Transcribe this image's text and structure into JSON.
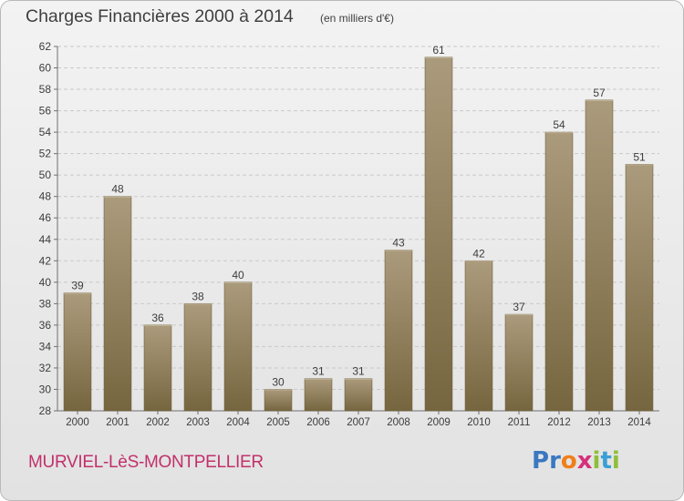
{
  "header": {
    "title": "Charges Financières 2000 à 2014",
    "subtitle": "(en milliers d'€)"
  },
  "footer": {
    "place": "MURVIEL-LèS-MONTPELLIER",
    "logo_letters": [
      {
        "ch": "P",
        "color": "#3a78c2"
      },
      {
        "ch": "r",
        "color": "#3a78c2"
      },
      {
        "ch": "o",
        "color": "#f07f1a"
      },
      {
        "ch": "x",
        "color": "#d6307c"
      },
      {
        "ch": "i",
        "color": "#8fbf3a"
      },
      {
        "ch": "t",
        "color": "#3a9fd6"
      },
      {
        "ch": "i",
        "color": "#8fbf3a"
      }
    ]
  },
  "chart_data": {
    "type": "bar",
    "title": "Charges Financières 2000 à 2014",
    "subtitle": "(en milliers d'€)",
    "categories": [
      "2000",
      "2001",
      "2002",
      "2003",
      "2004",
      "2005",
      "2006",
      "2007",
      "2008",
      "2009",
      "2010",
      "2011",
      "2012",
      "2013",
      "2014"
    ],
    "values": [
      39,
      48,
      36,
      38,
      40,
      30,
      31,
      31,
      43,
      61,
      42,
      37,
      54,
      57,
      51
    ],
    "ylim": [
      28,
      62
    ],
    "yticks": [
      28,
      30,
      32,
      34,
      36,
      38,
      40,
      42,
      44,
      46,
      48,
      50,
      52,
      54,
      56,
      58,
      60,
      62
    ],
    "grid": true,
    "bar_color_light": "#a8987a",
    "bar_color_dark": "#7a6a4a"
  }
}
